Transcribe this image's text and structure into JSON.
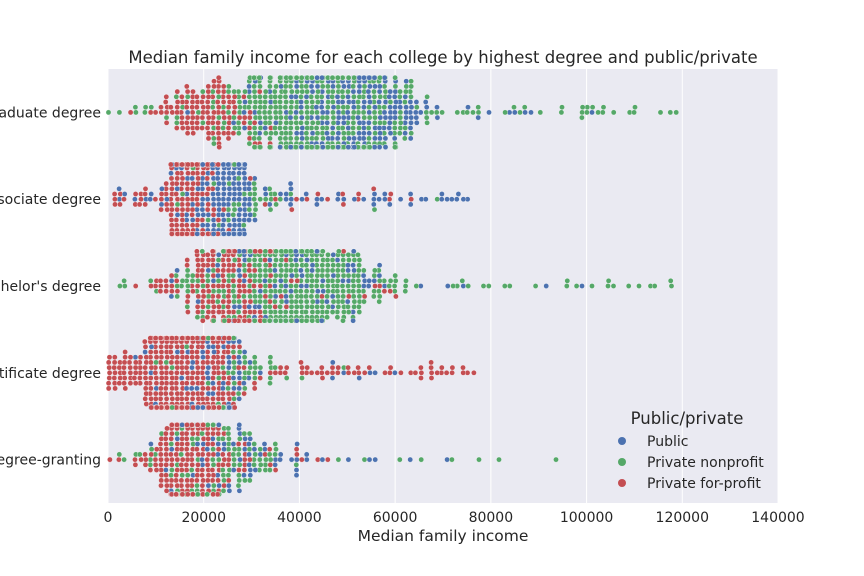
{
  "chart_data": {
    "type": "swarm",
    "title": "Median family income for each college by highest degree and public/private",
    "xlabel": "Median family income",
    "ylabel": "",
    "xlim": [
      0,
      140000
    ],
    "xticks": [
      0,
      20000,
      40000,
      60000,
      80000,
      100000,
      120000,
      140000
    ],
    "xtick_labels": [
      "0",
      "20000",
      "40000",
      "60000",
      "80000",
      "100000",
      "120000",
      "140000"
    ],
    "categories": [
      "Graduate degree",
      "Associate degree",
      "Bachelor's degree",
      "Certificate degree",
      "Non-degree-granting"
    ],
    "grid": true,
    "legend": {
      "title": "Public/private",
      "placement": "lower-right",
      "entries": [
        {
          "name": "Public",
          "color": "#4c72b0"
        },
        {
          "name": "Private nonprofit",
          "color": "#55a868"
        },
        {
          "name": "Private for-profit",
          "color": "#c44e52"
        }
      ]
    },
    "series_distributions": [
      {
        "category": "Graduate degree",
        "series": "Private nonprofit",
        "count": 620,
        "median": 44000,
        "spread": 17000,
        "min": 0,
        "max": 119000
      },
      {
        "category": "Graduate degree",
        "series": "Public",
        "count": 330,
        "median": 50000,
        "spread": 14000,
        "min": 16000,
        "max": 105000
      },
      {
        "category": "Graduate degree",
        "series": "Private for-profit",
        "count": 120,
        "median": 22000,
        "spread": 9000,
        "min": 3000,
        "max": 75000
      },
      {
        "category": "Associate degree",
        "series": "Public",
        "count": 520,
        "median": 23000,
        "spread": 5500,
        "min": 0,
        "max": 78000
      },
      {
        "category": "Associate degree",
        "series": "Private nonprofit",
        "count": 90,
        "median": 26000,
        "spread": 9000,
        "min": 3000,
        "max": 71000
      },
      {
        "category": "Associate degree",
        "series": "Private for-profit",
        "count": 380,
        "median": 18000,
        "spread": 5500,
        "min": 0,
        "max": 63000
      },
      {
        "category": "Bachelor's degree",
        "series": "Private nonprofit",
        "count": 480,
        "median": 38000,
        "spread": 16000,
        "min": 0,
        "max": 122000
      },
      {
        "category": "Bachelor's degree",
        "series": "Public",
        "count": 120,
        "median": 38000,
        "spread": 16000,
        "min": 9000,
        "max": 104000
      },
      {
        "category": "Bachelor's degree",
        "series": "Private for-profit",
        "count": 220,
        "median": 26000,
        "spread": 11000,
        "min": 2000,
        "max": 61000
      },
      {
        "category": "Certificate degree",
        "series": "Private for-profit",
        "count": 1300,
        "median": 17000,
        "spread": 7000,
        "min": 0,
        "max": 77000
      },
      {
        "category": "Certificate degree",
        "series": "Public",
        "count": 230,
        "median": 21000,
        "spread": 7000,
        "min": 3000,
        "max": 62000
      },
      {
        "category": "Certificate degree",
        "series": "Private nonprofit",
        "count": 90,
        "median": 25000,
        "spread": 10000,
        "min": 4000,
        "max": 57000
      },
      {
        "category": "Non-degree-granting",
        "series": "Private for-profit",
        "count": 230,
        "median": 17000,
        "spread": 7000,
        "min": 0,
        "max": 46000
      },
      {
        "category": "Non-degree-granting",
        "series": "Private nonprofit",
        "count": 110,
        "median": 22000,
        "spread": 12000,
        "min": 0,
        "max": 97000
      },
      {
        "category": "Non-degree-granting",
        "series": "Public",
        "count": 70,
        "median": 27000,
        "spread": 14000,
        "min": 9000,
        "max": 75000
      }
    ]
  }
}
